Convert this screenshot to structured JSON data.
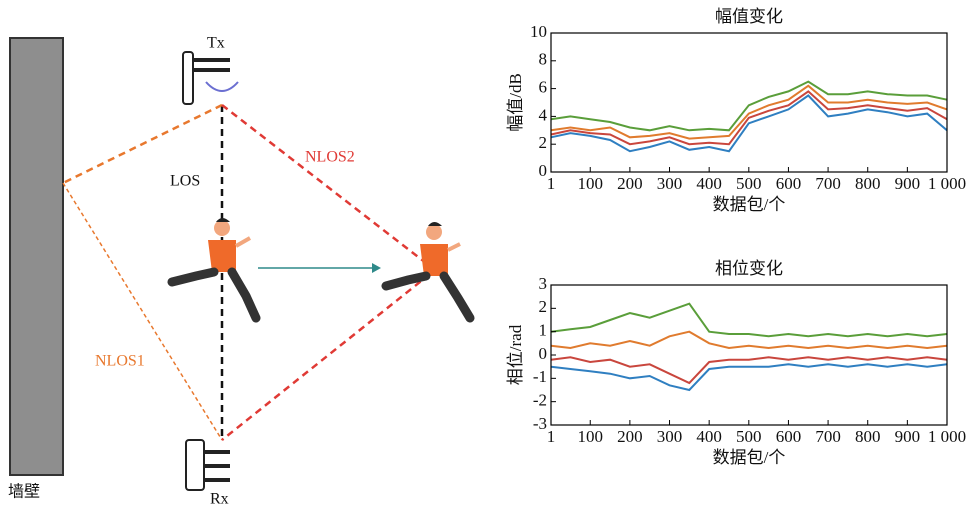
{
  "diagram": {
    "wall": "墙壁",
    "tx": "Tx",
    "rx": "Rx",
    "los": "LOS",
    "nlos1": "NLOS1",
    "nlos2": "NLOS2"
  },
  "chart_data": [
    {
      "type": "line",
      "title": "幅值变化",
      "x_label": "数据包/个",
      "y_label": "幅值/dB",
      "x": [
        1,
        50,
        100,
        150,
        200,
        250,
        300,
        350,
        400,
        450,
        500,
        550,
        600,
        650,
        700,
        750,
        800,
        850,
        900,
        950,
        1000
      ],
      "xlim": [
        1,
        1000
      ],
      "xticks": [
        1,
        100,
        200,
        300,
        400,
        500,
        600,
        700,
        800,
        900,
        {
          "value": 1000,
          "label": "1 000"
        }
      ],
      "ylim": [
        0,
        10
      ],
      "yticks": [
        0,
        2,
        4,
        6,
        8,
        10
      ],
      "series": [
        {
          "color": "#5a9e3a",
          "values": [
            3.8,
            4.0,
            3.8,
            3.6,
            3.2,
            3.0,
            3.3,
            3.0,
            3.1,
            3.0,
            4.8,
            5.4,
            5.8,
            6.5,
            5.6,
            5.6,
            5.8,
            5.6,
            5.5,
            5.5,
            5.2
          ]
        },
        {
          "color": "#e07b2e",
          "values": [
            3.0,
            3.2,
            3.0,
            3.2,
            2.5,
            2.6,
            2.8,
            2.4,
            2.5,
            2.6,
            4.2,
            4.8,
            5.2,
            6.2,
            5.0,
            5.0,
            5.2,
            5.0,
            4.9,
            5.0,
            4.5
          ]
        },
        {
          "color": "#c9463d",
          "values": [
            2.7,
            3.0,
            2.8,
            2.7,
            2.0,
            2.2,
            2.5,
            2.0,
            2.1,
            2.0,
            3.9,
            4.4,
            4.8,
            5.8,
            4.5,
            4.6,
            4.8,
            4.6,
            4.4,
            4.6,
            3.8
          ]
        },
        {
          "color": "#2f7fc1",
          "values": [
            2.5,
            2.8,
            2.6,
            2.3,
            1.5,
            1.8,
            2.2,
            1.6,
            1.8,
            1.5,
            3.5,
            4.0,
            4.5,
            5.5,
            4.0,
            4.2,
            4.5,
            4.3,
            4.0,
            4.2,
            3.0
          ]
        }
      ]
    },
    {
      "type": "line",
      "title": "相位变化",
      "x_label": "数据包/个",
      "y_label": "相位/rad",
      "x": [
        1,
        50,
        100,
        150,
        200,
        250,
        300,
        350,
        400,
        450,
        500,
        550,
        600,
        650,
        700,
        750,
        800,
        850,
        900,
        950,
        1000
      ],
      "xlim": [
        1,
        1000
      ],
      "xticks": [
        1,
        100,
        200,
        300,
        400,
        500,
        600,
        700,
        800,
        900,
        {
          "value": 1000,
          "label": "1 000"
        }
      ],
      "ylim": [
        -3,
        3
      ],
      "yticks": [
        -3,
        -2,
        -1,
        0,
        1,
        2,
        3
      ],
      "series": [
        {
          "color": "#5a9e3a",
          "values": [
            1.0,
            1.1,
            1.2,
            1.5,
            1.8,
            1.6,
            1.9,
            2.2,
            1.0,
            0.9,
            0.9,
            0.8,
            0.9,
            0.8,
            0.9,
            0.8,
            0.9,
            0.8,
            0.9,
            0.8,
            0.9
          ]
        },
        {
          "color": "#e07b2e",
          "values": [
            0.4,
            0.3,
            0.5,
            0.4,
            0.6,
            0.4,
            0.8,
            1.0,
            0.5,
            0.3,
            0.4,
            0.3,
            0.4,
            0.3,
            0.4,
            0.3,
            0.4,
            0.3,
            0.4,
            0.3,
            0.4
          ]
        },
        {
          "color": "#c9463d",
          "values": [
            -0.2,
            -0.1,
            -0.3,
            -0.2,
            -0.5,
            -0.4,
            -0.8,
            -1.2,
            -0.3,
            -0.2,
            -0.2,
            -0.1,
            -0.2,
            -0.1,
            -0.2,
            -0.1,
            -0.2,
            -0.1,
            -0.2,
            -0.1,
            -0.2
          ]
        },
        {
          "color": "#2f7fc1",
          "values": [
            -0.5,
            -0.6,
            -0.7,
            -0.8,
            -1.0,
            -0.9,
            -1.3,
            -1.5,
            -0.6,
            -0.5,
            -0.5,
            -0.5,
            -0.4,
            -0.5,
            -0.4,
            -0.5,
            -0.4,
            -0.5,
            -0.4,
            -0.5,
            -0.4
          ]
        }
      ]
    }
  ]
}
